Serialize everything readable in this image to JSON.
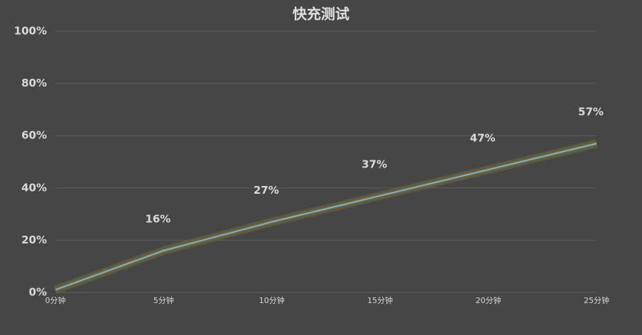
{
  "chart_data": {
    "type": "line",
    "title": "快充测试",
    "categories": [
      "0分钟",
      "5分钟",
      "10分钟",
      "15分钟",
      "20分钟",
      "25分钟"
    ],
    "values": [
      1,
      16,
      27,
      37,
      47,
      57
    ],
    "value_labels": [
      null,
      "16%",
      "27%",
      "37%",
      "47%",
      "57%"
    ],
    "color": "#80b3c4",
    "ylim": [
      0,
      100
    ],
    "yticks": [
      {
        "value": 0,
        "label": "0%"
      },
      {
        "value": 20,
        "label": "20%"
      },
      {
        "value": 40,
        "label": "40%"
      },
      {
        "value": 60,
        "label": "60%"
      },
      {
        "value": 80,
        "label": "80%"
      },
      {
        "value": 100,
        "label": "100%"
      }
    ],
    "grid": true
  }
}
